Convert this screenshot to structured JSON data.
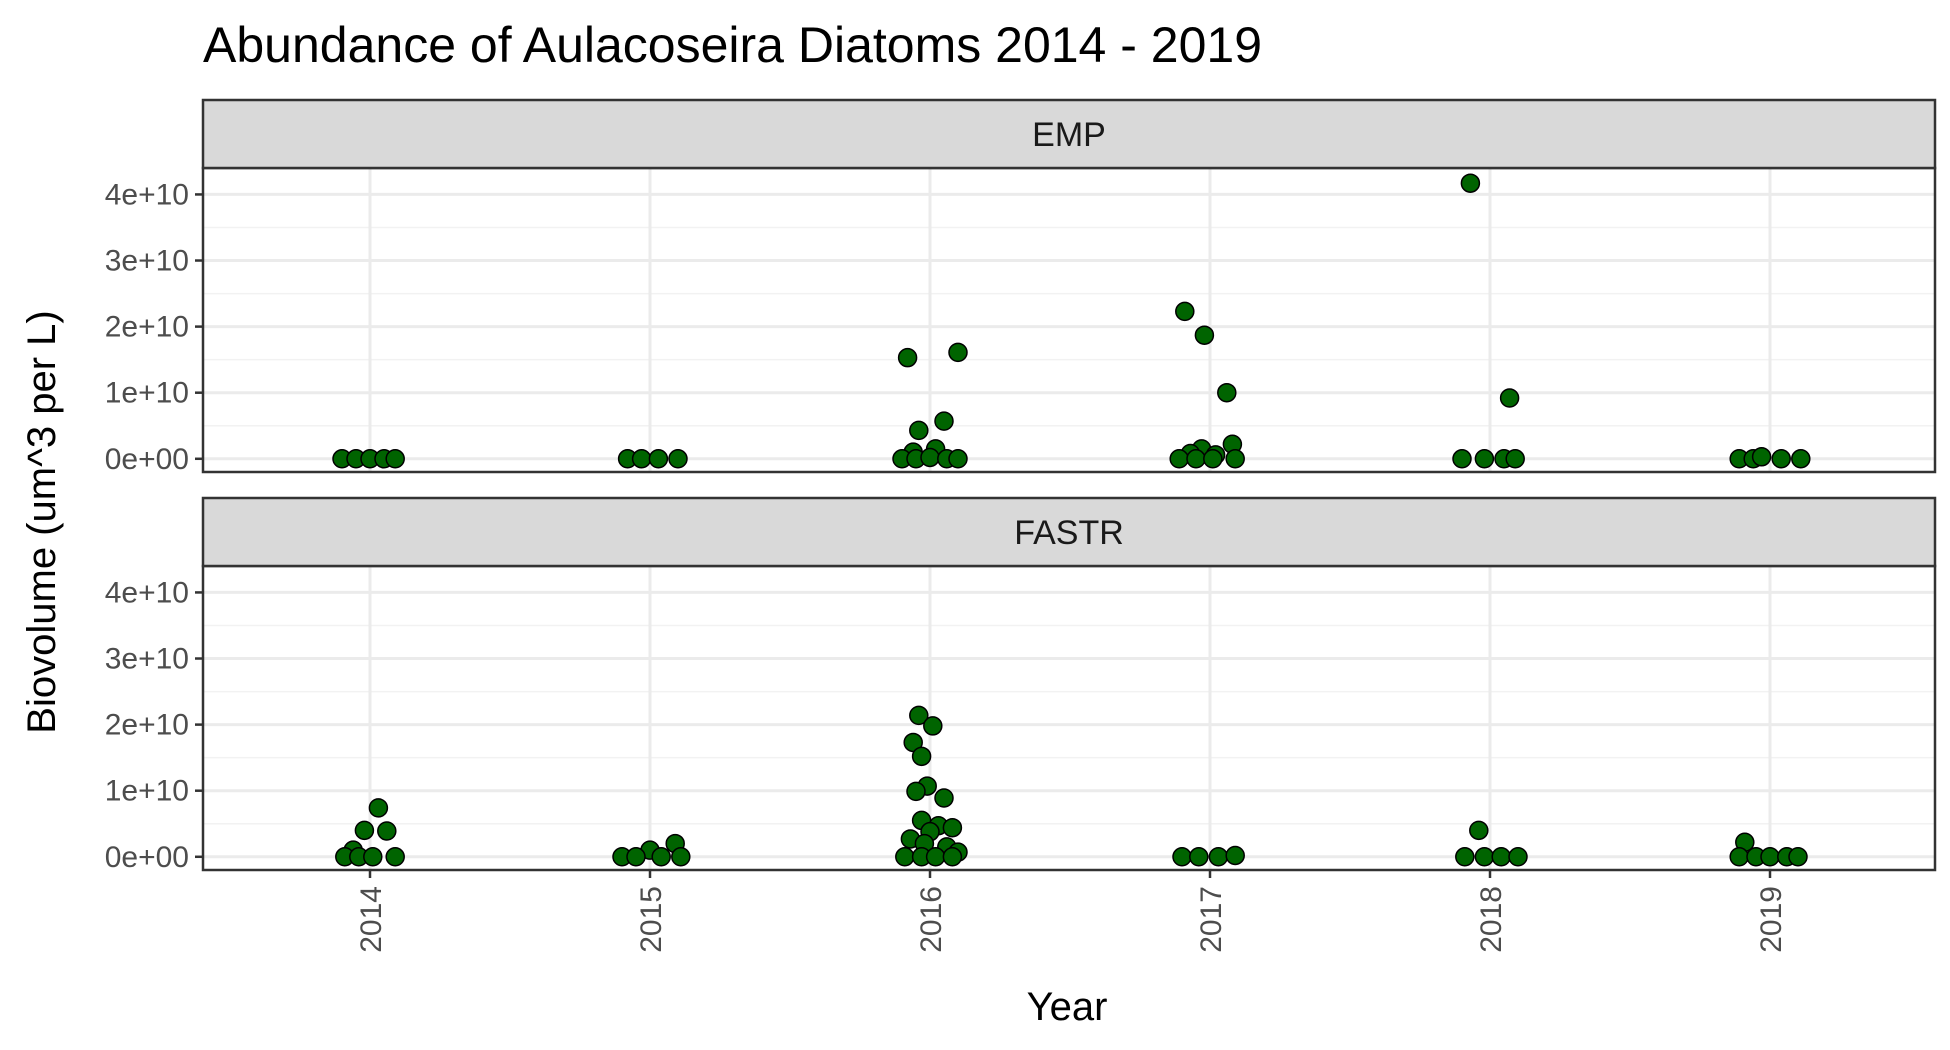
{
  "chart_data": {
    "type": "scatter",
    "title": "Abundance of Aulacoseira Diatoms 2014 - 2019",
    "xlabel": "Year",
    "ylabel": "Biovolume (um^3 per L)",
    "x_categories": [
      "2014",
      "2015",
      "2016",
      "2017",
      "2018",
      "2019"
    ],
    "y_ticks": [
      0,
      10000000000,
      20000000000,
      30000000000,
      40000000000
    ],
    "y_tick_labels": [
      "0e+00",
      "1e+10",
      "2e+10",
      "3e+10",
      "4e+10"
    ],
    "ylim": [
      -2000000000,
      44000000000
    ],
    "grid": true,
    "point_fill": "#006400",
    "point_stroke": "#000000",
    "panels": [
      {
        "label": "EMP",
        "points": [
          {
            "year": "2014",
            "offset": -0.1,
            "y": 0
          },
          {
            "year": "2014",
            "offset": -0.05,
            "y": 0
          },
          {
            "year": "2014",
            "offset": 0.0,
            "y": 0
          },
          {
            "year": "2014",
            "offset": 0.05,
            "y": 0
          },
          {
            "year": "2014",
            "offset": 0.09,
            "y": 0
          },
          {
            "year": "2015",
            "offset": -0.08,
            "y": 0
          },
          {
            "year": "2015",
            "offset": -0.03,
            "y": 0
          },
          {
            "year": "2015",
            "offset": 0.03,
            "y": 0
          },
          {
            "year": "2015",
            "offset": 0.1,
            "y": 0
          },
          {
            "year": "2016",
            "offset": -0.08,
            "y": 15300000000
          },
          {
            "year": "2016",
            "offset": 0.1,
            "y": 16100000000
          },
          {
            "year": "2016",
            "offset": 0.05,
            "y": 5700000000
          },
          {
            "year": "2016",
            "offset": -0.04,
            "y": 4300000000
          },
          {
            "year": "2016",
            "offset": 0.02,
            "y": 1500000000
          },
          {
            "year": "2016",
            "offset": -0.06,
            "y": 1000000000
          },
          {
            "year": "2016",
            "offset": -0.1,
            "y": 0
          },
          {
            "year": "2016",
            "offset": -0.05,
            "y": 0
          },
          {
            "year": "2016",
            "offset": 0.0,
            "y": 200000000
          },
          {
            "year": "2016",
            "offset": 0.06,
            "y": 0
          },
          {
            "year": "2016",
            "offset": 0.1,
            "y": 0
          },
          {
            "year": "2017",
            "offset": -0.09,
            "y": 22300000000
          },
          {
            "year": "2017",
            "offset": -0.02,
            "y": 18700000000
          },
          {
            "year": "2017",
            "offset": 0.06,
            "y": 10000000000
          },
          {
            "year": "2017",
            "offset": 0.08,
            "y": 2200000000
          },
          {
            "year": "2017",
            "offset": -0.03,
            "y": 1500000000
          },
          {
            "year": "2017",
            "offset": -0.07,
            "y": 800000000
          },
          {
            "year": "2017",
            "offset": 0.02,
            "y": 600000000
          },
          {
            "year": "2017",
            "offset": -0.11,
            "y": 0
          },
          {
            "year": "2017",
            "offset": -0.05,
            "y": 0
          },
          {
            "year": "2017",
            "offset": 0.01,
            "y": 0
          },
          {
            "year": "2017",
            "offset": 0.09,
            "y": 0
          },
          {
            "year": "2018",
            "offset": -0.07,
            "y": 41700000000
          },
          {
            "year": "2018",
            "offset": 0.07,
            "y": 9200000000
          },
          {
            "year": "2018",
            "offset": -0.1,
            "y": 0
          },
          {
            "year": "2018",
            "offset": -0.02,
            "y": 0
          },
          {
            "year": "2018",
            "offset": 0.05,
            "y": 0
          },
          {
            "year": "2018",
            "offset": 0.09,
            "y": 0
          },
          {
            "year": "2019",
            "offset": -0.11,
            "y": 0
          },
          {
            "year": "2019",
            "offset": -0.06,
            "y": 0
          },
          {
            "year": "2019",
            "offset": -0.03,
            "y": 300000000
          },
          {
            "year": "2019",
            "offset": 0.04,
            "y": 0
          },
          {
            "year": "2019",
            "offset": 0.11,
            "y": 0
          }
        ]
      },
      {
        "label": "FASTR",
        "points": [
          {
            "year": "2014",
            "offset": 0.03,
            "y": 7400000000
          },
          {
            "year": "2014",
            "offset": -0.02,
            "y": 4000000000
          },
          {
            "year": "2014",
            "offset": 0.06,
            "y": 3900000000
          },
          {
            "year": "2014",
            "offset": -0.06,
            "y": 1000000000
          },
          {
            "year": "2014",
            "offset": -0.09,
            "y": 0
          },
          {
            "year": "2014",
            "offset": -0.04,
            "y": 0
          },
          {
            "year": "2014",
            "offset": 0.01,
            "y": 0
          },
          {
            "year": "2014",
            "offset": 0.09,
            "y": 0
          },
          {
            "year": "2015",
            "offset": 0.09,
            "y": 2000000000
          },
          {
            "year": "2015",
            "offset": 0.0,
            "y": 1000000000
          },
          {
            "year": "2015",
            "offset": -0.1,
            "y": 0
          },
          {
            "year": "2015",
            "offset": -0.05,
            "y": 0
          },
          {
            "year": "2015",
            "offset": 0.04,
            "y": 0
          },
          {
            "year": "2015",
            "offset": 0.11,
            "y": 0
          },
          {
            "year": "2016",
            "offset": -0.04,
            "y": 21400000000
          },
          {
            "year": "2016",
            "offset": 0.01,
            "y": 19800000000
          },
          {
            "year": "2016",
            "offset": -0.06,
            "y": 17300000000
          },
          {
            "year": "2016",
            "offset": -0.03,
            "y": 15200000000
          },
          {
            "year": "2016",
            "offset": -0.01,
            "y": 10700000000
          },
          {
            "year": "2016",
            "offset": -0.05,
            "y": 9900000000
          },
          {
            "year": "2016",
            "offset": 0.05,
            "y": 8900000000
          },
          {
            "year": "2016",
            "offset": -0.03,
            "y": 5500000000
          },
          {
            "year": "2016",
            "offset": 0.03,
            "y": 4700000000
          },
          {
            "year": "2016",
            "offset": 0.08,
            "y": 4400000000
          },
          {
            "year": "2016",
            "offset": 0.0,
            "y": 3800000000
          },
          {
            "year": "2016",
            "offset": -0.07,
            "y": 2700000000
          },
          {
            "year": "2016",
            "offset": -0.02,
            "y": 2000000000
          },
          {
            "year": "2016",
            "offset": 0.06,
            "y": 1500000000
          },
          {
            "year": "2016",
            "offset": 0.1,
            "y": 700000000
          },
          {
            "year": "2016",
            "offset": -0.09,
            "y": 0
          },
          {
            "year": "2016",
            "offset": -0.03,
            "y": 0
          },
          {
            "year": "2016",
            "offset": 0.02,
            "y": 0
          },
          {
            "year": "2016",
            "offset": 0.08,
            "y": 0
          },
          {
            "year": "2017",
            "offset": -0.1,
            "y": 0
          },
          {
            "year": "2017",
            "offset": -0.04,
            "y": 0
          },
          {
            "year": "2017",
            "offset": 0.03,
            "y": 0
          },
          {
            "year": "2017",
            "offset": 0.09,
            "y": 200000000
          },
          {
            "year": "2018",
            "offset": -0.04,
            "y": 4000000000
          },
          {
            "year": "2018",
            "offset": -0.09,
            "y": 0
          },
          {
            "year": "2018",
            "offset": -0.02,
            "y": 0
          },
          {
            "year": "2018",
            "offset": 0.04,
            "y": 0
          },
          {
            "year": "2018",
            "offset": 0.1,
            "y": 0
          },
          {
            "year": "2019",
            "offset": -0.09,
            "y": 2200000000
          },
          {
            "year": "2019",
            "offset": -0.11,
            "y": 0
          },
          {
            "year": "2019",
            "offset": -0.05,
            "y": 0
          },
          {
            "year": "2019",
            "offset": 0.0,
            "y": 0
          },
          {
            "year": "2019",
            "offset": 0.06,
            "y": 0
          },
          {
            "year": "2019",
            "offset": 0.1,
            "y": 0
          }
        ]
      }
    ]
  }
}
